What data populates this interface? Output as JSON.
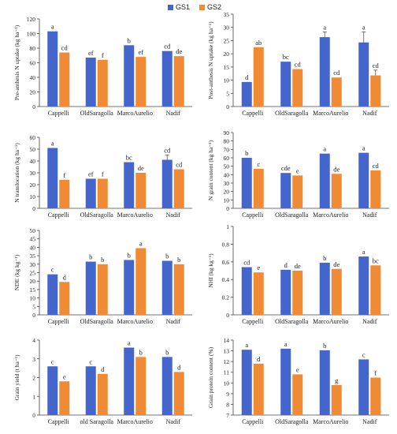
{
  "legend": {
    "items": [
      {
        "label": "GS1",
        "color": "#4466CC"
      },
      {
        "label": "GS2",
        "color": "#F08A35"
      }
    ]
  },
  "colors": {
    "GS1": "#4466CC",
    "GS2": "#F08A35",
    "axis": "#444444",
    "text": "#222222"
  },
  "chart_data": [
    {
      "type": "bar",
      "ylabel": "Pre-anthesis N uptake (kg ha⁻¹)",
      "ylim": [
        0,
        120
      ],
      "yticks": [
        0,
        20,
        40,
        60,
        80,
        100,
        120
      ],
      "categories": [
        "Cappelli",
        "OldSaragolla",
        "MarcoAurelio",
        "Nadif"
      ],
      "series": [
        {
          "name": "GS1",
          "values": [
            103,
            67,
            84,
            76
          ],
          "errors": [
            0,
            0,
            0,
            0
          ],
          "letters": [
            "a",
            "ef",
            "b",
            "cd"
          ]
        },
        {
          "name": "GS2",
          "values": [
            74,
            64,
            68,
            69
          ],
          "errors": [
            0,
            0,
            0,
            0
          ],
          "letters": [
            "cd",
            "f",
            "ef",
            "de"
          ]
        }
      ]
    },
    {
      "type": "bar",
      "ylabel": "Post-anthesis N uptake (kg ha⁻¹)",
      "ylim": [
        0,
        35
      ],
      "yticks": [
        0,
        5,
        10,
        15,
        20,
        25,
        30,
        35
      ],
      "categories": [
        "Cappelli",
        "OldSaragolla",
        "MarcoAurelio",
        "Nadif"
      ],
      "series": [
        {
          "name": "GS1",
          "values": [
            9.3,
            17,
            26.3,
            24.3
          ],
          "errors": [
            0,
            0,
            2,
            4
          ],
          "letters": [
            "d",
            "bc",
            "a",
            "a"
          ]
        },
        {
          "name": "GS2",
          "values": [
            22.5,
            14.2,
            11,
            11.8
          ],
          "errors": [
            0,
            0,
            0,
            2
          ],
          "letters": [
            "ab",
            "cd",
            "cd",
            "cd"
          ]
        }
      ]
    },
    {
      "type": "bar",
      "ylabel": "N translocation (kg ha⁻¹)",
      "ylim": [
        0,
        60
      ],
      "yticks": [
        0,
        10,
        20,
        30,
        40,
        50,
        60
      ],
      "categories": [
        "Cappelli",
        "OldSaragolla",
        "MarcoAurelio",
        "Nadif"
      ],
      "series": [
        {
          "name": "GS1",
          "values": [
            51,
            25,
            39,
            41
          ],
          "errors": [
            0,
            0,
            0,
            4
          ],
          "letters": [
            "a",
            "ef",
            "bc",
            "cd"
          ]
        },
        {
          "name": "GS2",
          "values": [
            24,
            25,
            30,
            33
          ],
          "errors": [
            0,
            0,
            0,
            0
          ],
          "letters": [
            "f",
            "f",
            "de",
            "cd"
          ]
        }
      ]
    },
    {
      "type": "bar",
      "ylabel": "N grain content (kg ha⁻¹)",
      "ylim": [
        0,
        90
      ],
      "yticks": [
        0,
        10,
        20,
        30,
        40,
        50,
        60,
        70,
        80,
        90
      ],
      "categories": [
        "Cappelli",
        "OldSaragolla",
        "MarcoAurelio",
        "Nadif"
      ],
      "series": [
        {
          "name": "GS1",
          "values": [
            60,
            42,
            65,
            66
          ],
          "errors": [
            0,
            0,
            0,
            0
          ],
          "letters": [
            "b",
            "cde",
            "a",
            "a"
          ]
        },
        {
          "name": "GS2",
          "values": [
            47,
            39,
            41,
            45
          ],
          "errors": [
            0,
            0,
            0,
            0
          ],
          "letters": [
            "c",
            "e",
            "de",
            "cd"
          ]
        }
      ]
    },
    {
      "type": "bar",
      "ylabel": "NDE (kg kg⁻¹)",
      "ylim": [
        0,
        50
      ],
      "yticks": [
        0,
        5,
        10,
        15,
        20,
        25,
        30,
        35,
        40,
        45,
        50
      ],
      "categories": [
        "Cappelli",
        "OldSaragolla",
        "MarcoAurelio",
        "Nadif"
      ],
      "series": [
        {
          "name": "GS1",
          "values": [
            24,
            31.5,
            32.5,
            32
          ],
          "errors": [
            0,
            0,
            0,
            0
          ],
          "letters": [
            "c",
            "b",
            "b",
            "b"
          ]
        },
        {
          "name": "GS2",
          "values": [
            19.5,
            30,
            39.5,
            30
          ],
          "errors": [
            0,
            0,
            0,
            0
          ],
          "letters": [
            "d",
            "b",
            "a",
            "b"
          ]
        }
      ]
    },
    {
      "type": "bar",
      "ylabel": "NHI (kg kg⁻¹)",
      "ylim": [
        0,
        1
      ],
      "yticks": [
        0,
        0.2,
        0.4,
        0.6,
        0.8,
        1
      ],
      "categories": [
        "Cappelli",
        "OldSaragolla",
        "MarcoAurelio",
        "Nadif"
      ],
      "series": [
        {
          "name": "GS1",
          "values": [
            0.54,
            0.51,
            0.59,
            0.66
          ],
          "errors": [
            0,
            0,
            0,
            0
          ],
          "letters": [
            "cd",
            "d",
            "b",
            "a"
          ]
        },
        {
          "name": "GS2",
          "values": [
            0.48,
            0.5,
            0.52,
            0.56
          ],
          "errors": [
            0,
            0,
            0,
            0
          ],
          "letters": [
            "e",
            "de",
            "de",
            "bc"
          ]
        }
      ]
    },
    {
      "type": "bar",
      "ylabel": "Grain yield (t ha⁻¹)",
      "ylim": [
        0,
        4
      ],
      "yticks": [
        0,
        1,
        2,
        3,
        4
      ],
      "categories": [
        "Cappelli",
        "old Saragolla",
        "MarcoAurelio",
        "Nadif"
      ],
      "series": [
        {
          "name": "GS1",
          "values": [
            2.6,
            2.6,
            3.6,
            3.1
          ],
          "errors": [
            0,
            0,
            0,
            0
          ],
          "letters": [
            "c",
            "c",
            "a",
            "b"
          ]
        },
        {
          "name": "GS2",
          "values": [
            1.8,
            2.2,
            3.1,
            2.3
          ],
          "errors": [
            0,
            0,
            0,
            0
          ],
          "letters": [
            "e",
            "d",
            "b",
            "d"
          ]
        }
      ]
    },
    {
      "type": "bar",
      "ylabel": "Grain protein content (%)",
      "ylim": [
        7,
        14
      ],
      "yticks": [
        7,
        8,
        9,
        10,
        11,
        12,
        13,
        14
      ],
      "categories": [
        "Cappelli",
        "OldSaragolla",
        "MarcoAurelio",
        "Nadif"
      ],
      "series": [
        {
          "name": "GS1",
          "values": [
            13.1,
            13.2,
            13.05,
            12.2
          ],
          "errors": [
            0,
            0,
            0,
            0
          ],
          "letters": [
            "a",
            "a",
            "b",
            "c"
          ]
        },
        {
          "name": "GS2",
          "values": [
            11.8,
            10.8,
            9.8,
            10.5
          ],
          "errors": [
            0,
            0,
            0,
            0
          ],
          "letters": [
            "d",
            "e",
            "g",
            "f"
          ]
        }
      ]
    }
  ]
}
